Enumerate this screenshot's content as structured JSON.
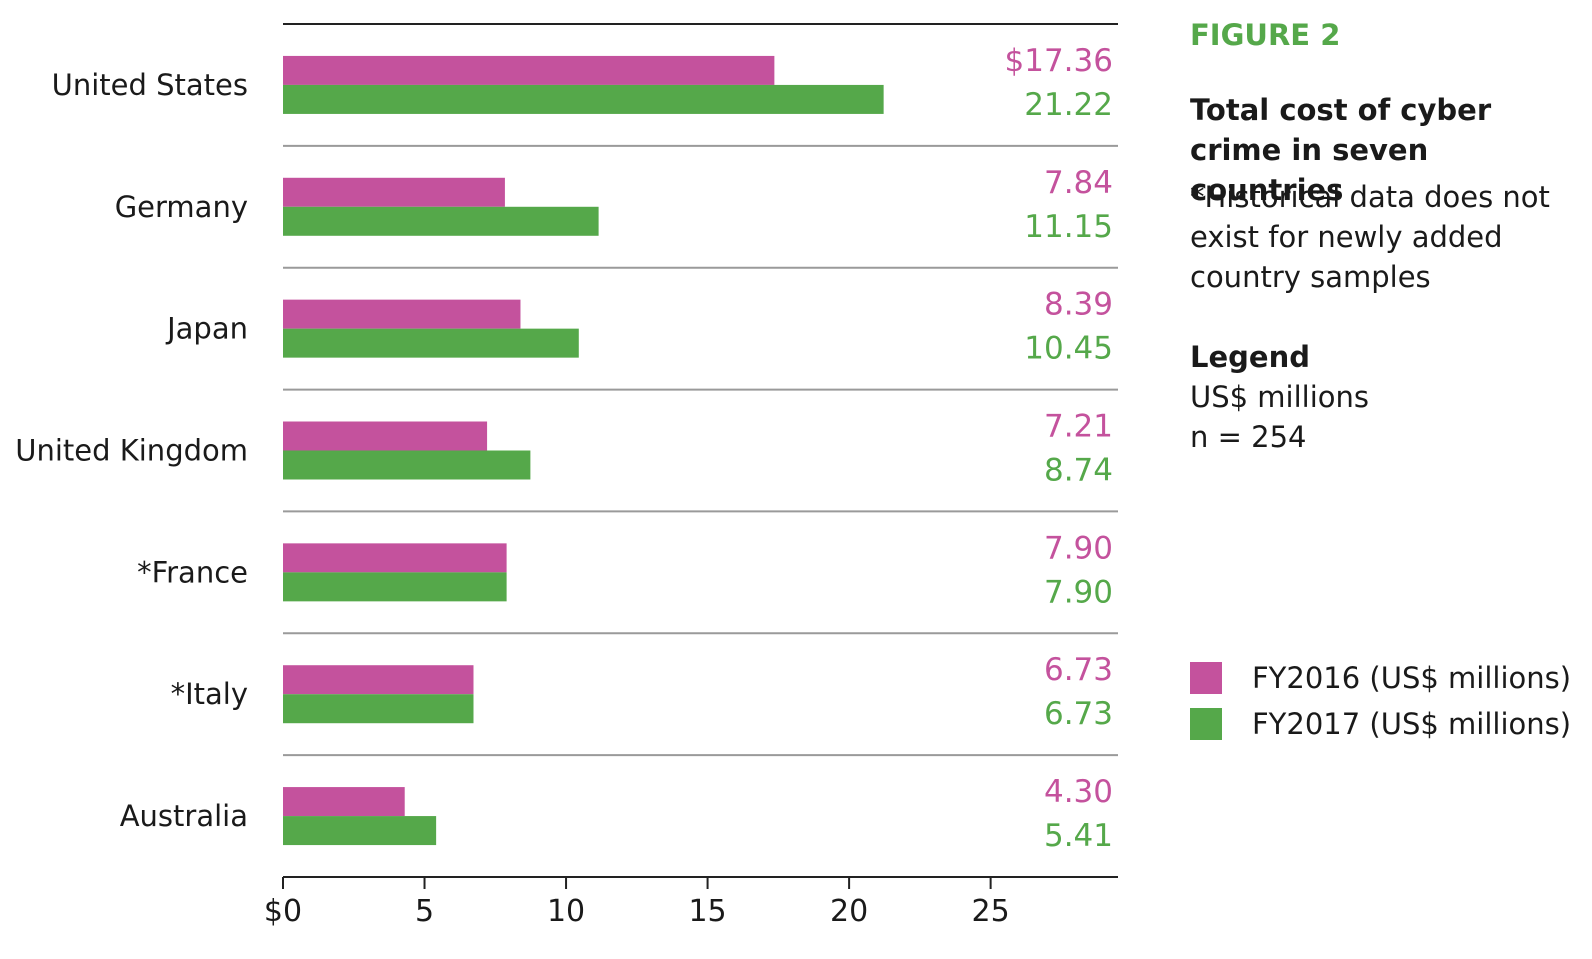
{
  "colors": {
    "fy2016": "#c4529d",
    "fy2017": "#55a84a",
    "accent": "#55a84a",
    "rule": "#9a9a9a"
  },
  "figure_label": "FIGURE 2",
  "title": "Total cost of cyber crime in seven countries",
  "note": "*Historical data does not exist for newly added country samples",
  "legend": {
    "heading": "Legend",
    "units": "US$ millions",
    "n": "n = 254",
    "items": [
      {
        "label": "FY2016 (US$ millions)",
        "color": "#c4529d"
      },
      {
        "label": "FY2017 (US$ millions)",
        "color": "#55a84a"
      }
    ]
  },
  "chart_data": {
    "type": "bar",
    "orientation": "horizontal",
    "title": "Total cost of cyber crime in seven countries",
    "categories": [
      "United States",
      "Germany",
      "Japan",
      "United Kingdom",
      "*France",
      "*Italy",
      "Australia"
    ],
    "series": [
      {
        "name": "FY2016 (US$ millions)",
        "color": "#c4529d",
        "values": [
          17.36,
          7.84,
          8.39,
          7.21,
          7.9,
          6.73,
          4.3
        ],
        "labels": [
          "$17.36",
          "7.84",
          "8.39",
          "7.21",
          "7.90",
          "6.73",
          "4.30"
        ]
      },
      {
        "name": "FY2017 (US$ millions)",
        "color": "#55a84a",
        "values": [
          21.22,
          11.15,
          10.45,
          8.74,
          7.9,
          6.73,
          5.41
        ],
        "labels": [
          "21.22",
          "11.15",
          "10.45",
          "8.74",
          "7.90",
          "6.73",
          "5.41"
        ]
      }
    ],
    "xlim": [
      0,
      29.5
    ],
    "xticks": [
      0,
      5,
      10,
      15,
      20,
      25
    ],
    "xtick_labels": [
      "$0",
      "5",
      "10",
      "15",
      "20",
      "25"
    ],
    "xlabel": "",
    "ylabel": "",
    "grid": false,
    "legend_position": "right"
  }
}
